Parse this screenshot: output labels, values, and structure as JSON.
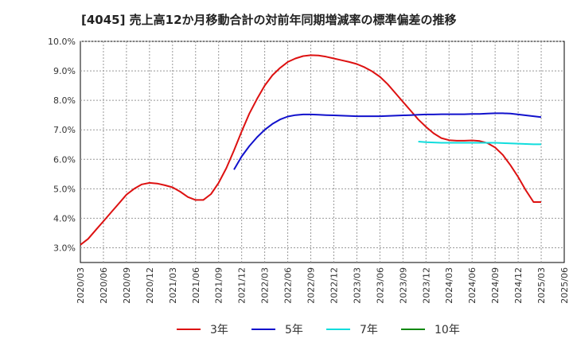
{
  "chart_data": {
    "type": "line",
    "title": "[4045]  売上高12か月移動合計の対前年同期増減率の標準偏差の推移",
    "xlabel": "",
    "ylabel": "",
    "ylim": [
      2.5,
      10.0
    ],
    "y_ticks": [
      "3.0%",
      "4.0%",
      "5.0%",
      "6.0%",
      "7.0%",
      "8.0%",
      "9.0%",
      "10.0%"
    ],
    "x_ticks": [
      "2020/03",
      "2020/06",
      "2020/09",
      "2020/12",
      "2021/03",
      "2021/06",
      "2021/09",
      "2021/12",
      "2022/03",
      "2022/06",
      "2022/09",
      "2022/12",
      "2023/03",
      "2023/06",
      "2023/09",
      "2023/12",
      "2024/03",
      "2024/06",
      "2024/09",
      "2024/12",
      "2025/03",
      "2025/06"
    ],
    "grid": true,
    "legend_position": "bottom",
    "series": [
      {
        "name": "3年",
        "color": "#dd1111",
        "x": [
          "2020/03",
          "2020/04",
          "2020/05",
          "2020/06",
          "2020/07",
          "2020/08",
          "2020/09",
          "2020/10",
          "2020/11",
          "2020/12",
          "2021/01",
          "2021/02",
          "2021/03",
          "2021/04",
          "2021/05",
          "2021/06",
          "2021/07",
          "2021/08",
          "2021/09",
          "2021/10",
          "2021/11",
          "2021/12",
          "2022/01",
          "2022/02",
          "2022/03",
          "2022/04",
          "2022/05",
          "2022/06",
          "2022/07",
          "2022/08",
          "2022/09",
          "2022/10",
          "2022/11",
          "2022/12",
          "2023/01",
          "2023/02",
          "2023/03",
          "2023/04",
          "2023/05",
          "2023/06",
          "2023/07",
          "2023/08",
          "2023/09",
          "2023/10",
          "2023/11",
          "2023/12",
          "2024/01",
          "2024/02",
          "2024/03",
          "2024/04",
          "2024/05",
          "2024/06",
          "2024/07",
          "2024/08",
          "2024/09",
          "2024/10",
          "2024/11",
          "2024/12",
          "2025/01",
          "2025/02",
          "2025/03"
        ],
        "values": [
          3.1,
          3.3,
          3.6,
          3.9,
          4.2,
          4.5,
          4.8,
          5.0,
          5.15,
          5.2,
          5.18,
          5.12,
          5.05,
          4.9,
          4.72,
          4.62,
          4.62,
          4.82,
          5.2,
          5.7,
          6.3,
          6.95,
          7.55,
          8.05,
          8.5,
          8.85,
          9.1,
          9.3,
          9.42,
          9.5,
          9.53,
          9.52,
          9.48,
          9.42,
          9.36,
          9.3,
          9.23,
          9.12,
          8.98,
          8.8,
          8.55,
          8.25,
          7.95,
          7.65,
          7.35,
          7.1,
          6.88,
          6.72,
          6.65,
          6.63,
          6.63,
          6.64,
          6.62,
          6.55,
          6.4,
          6.15,
          5.8,
          5.4,
          4.95,
          4.55,
          4.55
        ]
      },
      {
        "name": "5年",
        "color": "#1111cc",
        "x": [
          "2021/11",
          "2021/12",
          "2022/01",
          "2022/02",
          "2022/03",
          "2022/04",
          "2022/05",
          "2022/06",
          "2022/07",
          "2022/08",
          "2022/09",
          "2022/10",
          "2022/11",
          "2022/12",
          "2023/01",
          "2023/02",
          "2023/03",
          "2023/04",
          "2023/05",
          "2023/06",
          "2023/07",
          "2023/08",
          "2023/09",
          "2023/10",
          "2023/11",
          "2023/12",
          "2024/01",
          "2024/02",
          "2024/03",
          "2024/04",
          "2024/05",
          "2024/06",
          "2024/07",
          "2024/08",
          "2024/09",
          "2024/10",
          "2024/11",
          "2024/12",
          "2025/01",
          "2025/02",
          "2025/03"
        ],
        "values": [
          5.65,
          6.1,
          6.45,
          6.75,
          7.0,
          7.2,
          7.35,
          7.45,
          7.5,
          7.52,
          7.52,
          7.51,
          7.5,
          7.49,
          7.48,
          7.47,
          7.46,
          7.46,
          7.46,
          7.46,
          7.47,
          7.48,
          7.49,
          7.5,
          7.51,
          7.52,
          7.52,
          7.53,
          7.53,
          7.53,
          7.53,
          7.54,
          7.54,
          7.55,
          7.56,
          7.56,
          7.55,
          7.52,
          7.49,
          7.46,
          7.43
        ]
      },
      {
        "name": "7年",
        "color": "#11dddd",
        "x": [
          "2023/11",
          "2023/12",
          "2024/01",
          "2024/02",
          "2024/03",
          "2024/04",
          "2024/05",
          "2024/06",
          "2024/07",
          "2024/08",
          "2024/09",
          "2024/10",
          "2024/11",
          "2024/12",
          "2025/01",
          "2025/02",
          "2025/03"
        ],
        "values": [
          6.6,
          6.58,
          6.57,
          6.56,
          6.56,
          6.56,
          6.56,
          6.56,
          6.56,
          6.56,
          6.56,
          6.55,
          6.54,
          6.53,
          6.52,
          6.51,
          6.51
        ]
      },
      {
        "name": "10年",
        "color": "#118811",
        "x": [],
        "values": []
      }
    ]
  }
}
